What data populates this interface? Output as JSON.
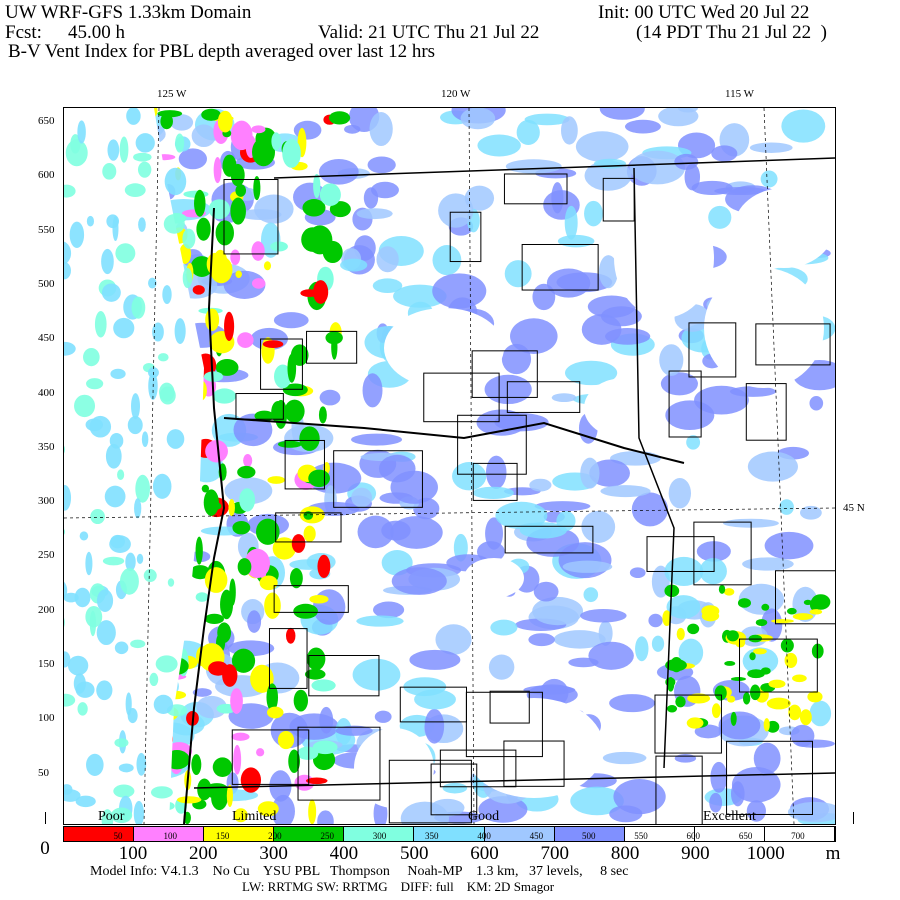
{
  "header": {
    "title": "UW WRF-GFS 1.33km Domain",
    "init": "Init: 00 UTC Wed 20 Jul 22",
    "fcst_label": "Fcst:",
    "fcst_value": "45.00 h",
    "valid": "Valid: 21 UTC Thu 21 Jul 22",
    "valid_local": "(14 PDT Thu 21 Jul 22  )",
    "field": "B-V Vent Index for PBL depth averaged over last 12 hrs"
  },
  "map": {
    "lon_labels": [
      "125 W",
      "120 W",
      "115 W"
    ],
    "lat_label": "45 N",
    "y_ticks": [
      "650",
      "600",
      "550",
      "500",
      "450",
      "400",
      "350",
      "300",
      "250",
      "200",
      "150",
      "100",
      "50"
    ]
  },
  "legend": {
    "categories": [
      "Poor",
      "Limited",
      "Good",
      "Excellent"
    ],
    "colors": [
      "#ff0000",
      "#ff80ff",
      "#ffff00",
      "#00c800",
      "#80ffe0",
      "#80e0ff",
      "#a0c8ff",
      "#8090ff"
    ],
    "bin_labels": [
      "50",
      "100",
      "150",
      "200",
      "250",
      "300",
      "350",
      "400",
      "450",
      "500",
      "550",
      "600",
      "650",
      "700"
    ],
    "axis_labels": [
      "0",
      "100",
      "200",
      "300",
      "400",
      "500",
      "600",
      "700",
      "800",
      "900",
      "1000"
    ],
    "unit": "m"
  },
  "footer": {
    "line1": "Model Info: V4.1.3    No Cu    YSU PBL   Thompson     Noah-MP    1.3 km,   37 levels,     8 sec",
    "line2": "LW: RRTMG SW: RRTMG    DIFF: full    KM: 2D Smagor"
  }
}
